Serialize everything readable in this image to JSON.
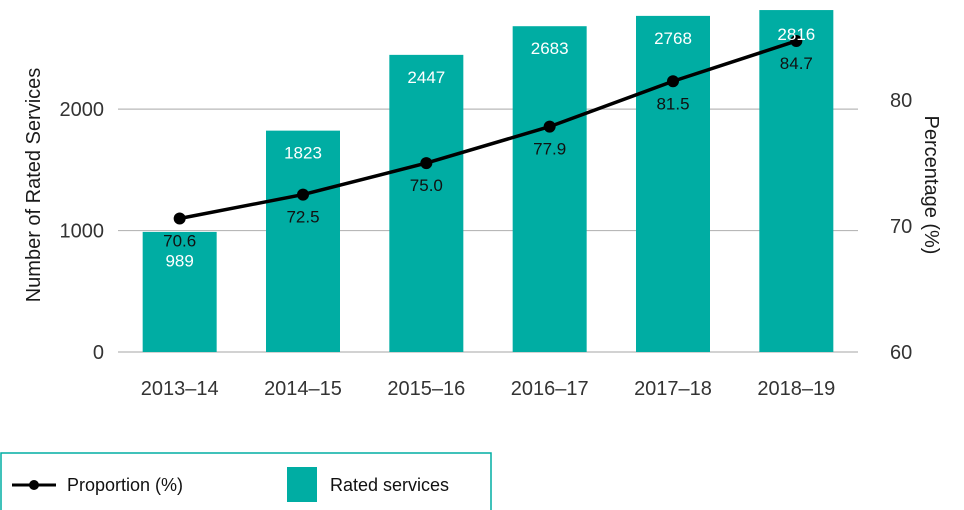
{
  "chart_data": {
    "type": "bar",
    "categories": [
      "2013–14",
      "2014–15",
      "2015–16",
      "2016–17",
      "2017–18",
      "2018–19"
    ],
    "series": [
      {
        "name": "Rated services",
        "type": "bar",
        "axis": "left",
        "values": [
          989,
          1823,
          2447,
          2683,
          2768,
          2816
        ]
      },
      {
        "name": "Proportion (%)",
        "type": "line",
        "axis": "right",
        "values": [
          70.6,
          72.5,
          75.0,
          77.9,
          81.5,
          84.7
        ]
      }
    ],
    "value_labels": {
      "bars": [
        "989",
        "1823",
        "2447",
        "2683",
        "2768",
        "2816"
      ],
      "line": [
        "70.6",
        "72.5",
        "75.0",
        "77.9",
        "81.5",
        "84.7"
      ]
    },
    "ylabel": "Number of Rated Services",
    "y2label": "Percentage (%)",
    "ylim": [
      0,
      2800
    ],
    "yticks": [
      "0",
      "1000",
      "2000"
    ],
    "y2lim": [
      60,
      87
    ],
    "y2ticks": [
      "60",
      "70",
      "80"
    ],
    "grid": true,
    "legend_position": "bottom-left",
    "colors": {
      "bar": "#00ada3",
      "line": "#000000",
      "grid": "#b8b8b8",
      "legend_border": "#00ada3"
    }
  }
}
